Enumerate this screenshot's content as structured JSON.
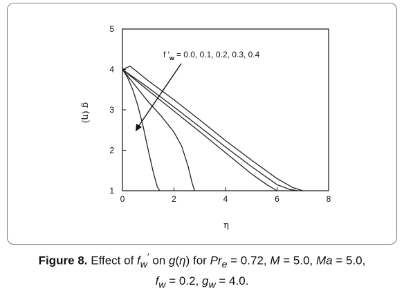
{
  "chart_data": {
    "type": "line",
    "xlabel": "η",
    "ylabel": "g (η)",
    "xlim": [
      0,
      8
    ],
    "ylim": [
      1,
      5
    ],
    "xticks": [
      "0",
      "2",
      "4",
      "6",
      "8"
    ],
    "yticks": [
      "1",
      "2",
      "3",
      "4",
      "5"
    ],
    "grid": false,
    "legend": "none",
    "line_color": "#222222",
    "annotation": {
      "prefix": "f ′",
      "subscript": "w",
      "values": "= 0.0, 0.1, 0.2, 0.3, 0.4"
    },
    "series": [
      {
        "x": [
          0,
          0.2,
          0.4,
          0.6,
          0.8,
          1.0,
          1.2,
          1.35,
          1.45
        ],
        "y": [
          4.0,
          3.8,
          3.5,
          3.1,
          2.6,
          2.0,
          1.45,
          1.1,
          1.0
        ]
      },
      {
        "x": [
          0,
          0.5,
          1.0,
          1.5,
          2.0,
          2.3,
          2.55,
          2.7,
          2.8
        ],
        "y": [
          4.0,
          3.6,
          3.2,
          2.85,
          2.45,
          2.1,
          1.6,
          1.2,
          1.0
        ]
      },
      {
        "x": [
          0,
          1.0,
          2.0,
          3.0,
          4.0,
          5.0,
          5.6,
          6.0
        ],
        "y": [
          4.0,
          3.48,
          2.97,
          2.46,
          1.94,
          1.42,
          1.15,
          1.0
        ]
      },
      {
        "x": [
          0,
          1.0,
          2.0,
          3.0,
          4.0,
          5.0,
          6.0,
          6.5,
          6.8
        ],
        "y": [
          4.0,
          3.55,
          3.07,
          2.58,
          2.08,
          1.6,
          1.15,
          1.03,
          1.0
        ]
      },
      {
        "x": [
          0,
          0.3,
          1.0,
          2.0,
          3.0,
          4.0,
          5.0,
          6.0,
          6.6,
          7.0
        ],
        "y": [
          4.0,
          4.08,
          3.72,
          3.25,
          2.75,
          2.24,
          1.76,
          1.3,
          1.08,
          1.0
        ]
      }
    ]
  },
  "caption": {
    "label": "Figure 8.",
    "t1": " Effect of ",
    "fw_f": "f",
    "fw_sub": "w",
    "fw_prime": "′",
    "t2": " on ",
    "g": "g",
    "t3": "(",
    "eta": "η",
    "t4": ") for ",
    "pr": "Pr",
    "pr_sub": "e",
    "t5": " = 0.72, ",
    "m": "M",
    "t6": " = 5.0, ",
    "ma": "Ma",
    "t7": " = 5.0,",
    "f2": "f",
    "f2_sub": "w",
    "t8": " = 0.2, ",
    "g2": "g",
    "g2_sub": "w",
    "t9": " = 4.0."
  }
}
